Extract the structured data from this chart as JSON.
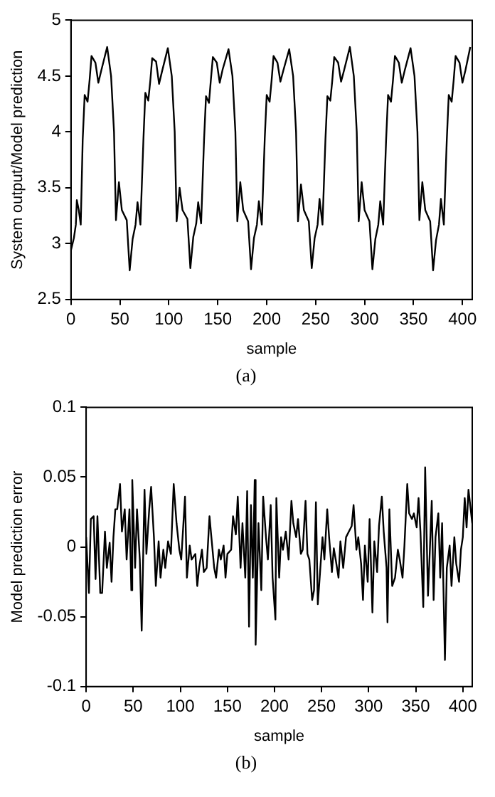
{
  "chart_data": [
    {
      "type": "line",
      "xlabel": "sample",
      "ylabel": "System output/Model prediction",
      "annotations": [
        "(a)"
      ],
      "xlim": [
        0,
        410
      ],
      "xticks": [
        0,
        50,
        100,
        150,
        200,
        250,
        300,
        350,
        400
      ],
      "ylim": [
        2.5,
        5
      ],
      "yticks": [
        2.5,
        3,
        3.5,
        4,
        4.5,
        5
      ],
      "grid": false,
      "legend": false,
      "marker": "none",
      "line_style": "solid",
      "series": [
        {
          "color": "#000000",
          "x": [
            0,
            3,
            5,
            6,
            8,
            10,
            12,
            14,
            17,
            19,
            21,
            25,
            28,
            31,
            37,
            41,
            44,
            46,
            49,
            52,
            57,
            60,
            63,
            66,
            68,
            71,
            74,
            76,
            79,
            81,
            83,
            87,
            90,
            93,
            99,
            103,
            106,
            108,
            111,
            114,
            119,
            122,
            125,
            128,
            130,
            133,
            136,
            138,
            141,
            143,
            145,
            149,
            152,
            155,
            161,
            165,
            168,
            170,
            173,
            176,
            181,
            184,
            187,
            190,
            192,
            195,
            198,
            200,
            203,
            205,
            207,
            211,
            214,
            217,
            223,
            227,
            230,
            232,
            235,
            238,
            243,
            246,
            249,
            252,
            254,
            257,
            260,
            262,
            265,
            267,
            269,
            273,
            276,
            279,
            285,
            289,
            292,
            294,
            297,
            300,
            305,
            308,
            311,
            314,
            316,
            319,
            322,
            324,
            327,
            329,
            331,
            335,
            338,
            341,
            347,
            351,
            354,
            356,
            359,
            362,
            367,
            370,
            373,
            376,
            378,
            381,
            384,
            386,
            389,
            391,
            393,
            397,
            400,
            403,
            408
          ],
          "values": [
            2.94,
            3.05,
            3.17,
            3.39,
            3.3,
            3.17,
            3.93,
            4.33,
            4.27,
            4.46,
            4.68,
            4.62,
            4.44,
            4.55,
            4.76,
            4.5,
            4.0,
            3.21,
            3.55,
            3.3,
            3.21,
            2.76,
            3.04,
            3.17,
            3.37,
            3.17,
            3.92,
            4.35,
            4.28,
            4.45,
            4.66,
            4.63,
            4.43,
            4.54,
            4.75,
            4.5,
            4.0,
            3.2,
            3.5,
            3.3,
            3.22,
            2.78,
            3.06,
            3.18,
            3.37,
            3.18,
            3.93,
            4.32,
            4.26,
            4.47,
            4.67,
            4.62,
            4.44,
            4.56,
            4.74,
            4.5,
            4.0,
            3.2,
            3.55,
            3.3,
            3.2,
            2.77,
            3.05,
            3.17,
            3.38,
            3.17,
            3.94,
            4.33,
            4.27,
            4.46,
            4.68,
            4.62,
            4.45,
            4.55,
            4.74,
            4.5,
            4.0,
            3.2,
            3.53,
            3.3,
            3.2,
            2.78,
            3.05,
            3.17,
            3.4,
            3.17,
            3.93,
            4.32,
            4.28,
            4.46,
            4.67,
            4.62,
            4.45,
            4.55,
            4.76,
            4.5,
            4.0,
            3.2,
            3.55,
            3.3,
            3.2,
            2.77,
            3.04,
            3.17,
            3.38,
            3.17,
            3.93,
            4.33,
            4.27,
            4.46,
            4.68,
            4.62,
            4.44,
            4.55,
            4.75,
            4.5,
            4.0,
            3.21,
            3.55,
            3.3,
            3.2,
            2.76,
            3.03,
            3.17,
            3.4,
            3.17,
            3.93,
            4.33,
            4.27,
            4.46,
            4.68,
            4.62,
            4.44,
            4.55,
            4.76
          ]
        }
      ]
    },
    {
      "type": "line",
      "xlabel": "sample",
      "ylabel": "Model prediction error",
      "annotations": [
        "(b)"
      ],
      "xlim": [
        0,
        410
      ],
      "xticks": [
        0,
        50,
        100,
        150,
        200,
        250,
        300,
        350,
        400
      ],
      "ylim": [
        -0.1,
        0.1
      ],
      "yticks": [
        -0.1,
        -0.05,
        0,
        0.05,
        0.1
      ],
      "grid": false,
      "legend": false,
      "marker": "none",
      "line_style": "solid",
      "series": [
        {
          "color": "#000000",
          "x": [
            0,
            3,
            5,
            8,
            10,
            12,
            15,
            17,
            20,
            22,
            25,
            27,
            29,
            31,
            33,
            36,
            38,
            41,
            43,
            46,
            48,
            49,
            52,
            54,
            57,
            59,
            62,
            64,
            67,
            69,
            72,
            74,
            77,
            79,
            82,
            84,
            87,
            90,
            93,
            96,
            99,
            101,
            105,
            107,
            110,
            112,
            116,
            118,
            120,
            123,
            125,
            128,
            131,
            133,
            136,
            138,
            141,
            143,
            146,
            148,
            150,
            154,
            156,
            159,
            161,
            164,
            166,
            169,
            171,
            173,
            175,
            177,
            179,
            180,
            183,
            186,
            188,
            191,
            193,
            196,
            198,
            201,
            202,
            205,
            207,
            209,
            212,
            215,
            218,
            220,
            223,
            225,
            228,
            230,
            233,
            235,
            237,
            240,
            242,
            244,
            246,
            248,
            251,
            253,
            256,
            258,
            261,
            263,
            265,
            268,
            270,
            273,
            276,
            279,
            282,
            284,
            287,
            289,
            292,
            294,
            296,
            299,
            301,
            304,
            306,
            309,
            311,
            314,
            316,
            319,
            320,
            322,
            325,
            328,
            331,
            333,
            336,
            338,
            341,
            343,
            346,
            348,
            351,
            353,
            355,
            358,
            360,
            363,
            365,
            367,
            369,
            371,
            374,
            376,
            378,
            381,
            383,
            386,
            388,
            391,
            393,
            396,
            398,
            400,
            402,
            404,
            406,
            410
          ],
          "values": [
            0.007,
            -0.033,
            0.02,
            0.022,
            -0.023,
            0.022,
            -0.033,
            -0.033,
            0.011,
            -0.015,
            0.003,
            -0.025,
            0.007,
            0.027,
            0.027,
            0.045,
            0.011,
            0.027,
            -0.009,
            0.027,
            -0.031,
            0.048,
            -0.015,
            0.027,
            -0.009,
            -0.06,
            0.041,
            -0.005,
            0.027,
            0.043,
            0.007,
            -0.028,
            0.004,
            -0.022,
            -0.002,
            -0.015,
            0.004,
            -0.005,
            0.045,
            0.017,
            -0.002,
            -0.009,
            0.036,
            -0.022,
            0.001,
            -0.009,
            -0.005,
            -0.028,
            -0.015,
            -0.002,
            -0.018,
            -0.015,
            0.022,
            0.007,
            -0.015,
            -0.022,
            -0.002,
            -0.009,
            0.001,
            -0.022,
            -0.005,
            -0.002,
            0.022,
            0.009,
            0.036,
            -0.015,
            0.017,
            -0.022,
            0.04,
            -0.057,
            0.03,
            -0.022,
            0.048,
            -0.07,
            0.017,
            -0.031,
            0.036,
            0.007,
            -0.009,
            0.03,
            -0.022,
            -0.052,
            0.035,
            -0.022,
            0.007,
            -0.002,
            0.011,
            -0.009,
            0.033,
            0.017,
            0.007,
            0.02,
            -0.005,
            -0.002,
            0.033,
            -0.005,
            -0.009,
            -0.038,
            -0.031,
            0.032,
            -0.041,
            -0.022,
            0.007,
            -0.009,
            0.027,
            0.007,
            -0.018,
            -0.001,
            -0.009,
            -0.022,
            0.004,
            -0.015,
            0.007,
            0.011,
            0.015,
            0.03,
            -0.002,
            0.007,
            -0.012,
            -0.038,
            0.001,
            -0.025,
            0.02,
            -0.047,
            0.004,
            -0.018,
            0.015,
            0.036,
            0.011,
            -0.015,
            -0.054,
            0.027,
            -0.028,
            -0.022,
            -0.002,
            -0.009,
            -0.022,
            0.001,
            0.045,
            0.024,
            0.02,
            0.024,
            0.014,
            0.035,
            0.011,
            -0.043,
            0.057,
            -0.035,
            -0.002,
            0.033,
            -0.038,
            0.007,
            0.024,
            -0.022,
            0.017,
            -0.081,
            -0.015,
            0.001,
            -0.028,
            0.007,
            -0.012,
            -0.025,
            -0.002,
            0.007,
            0.035,
            0.014,
            0.041,
            0.017
          ]
        }
      ]
    }
  ]
}
